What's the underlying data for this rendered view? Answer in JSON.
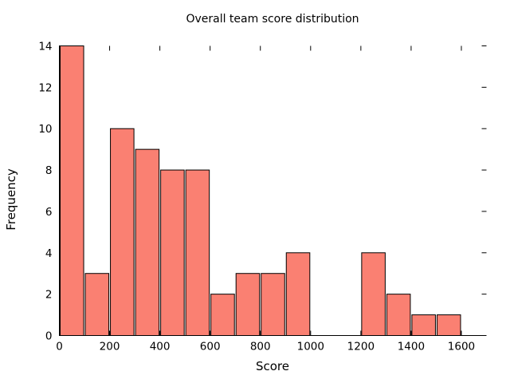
{
  "figure": {
    "background": "#ffffff"
  },
  "chart_data": {
    "type": "bar",
    "subtype": "histogram",
    "title": "Overall team score distribution",
    "xlabel": "Score",
    "ylabel": "Frequency",
    "bin_edges": [
      0,
      100,
      200,
      300,
      400,
      500,
      600,
      700,
      800,
      900,
      1000,
      1100,
      1200,
      1300,
      1400,
      1500,
      1600
    ],
    "values": [
      14,
      3,
      10,
      9,
      8,
      8,
      2,
      3,
      3,
      4,
      0,
      0,
      4,
      2,
      1,
      1
    ],
    "xlim": [
      0,
      1700
    ],
    "ylim": [
      0,
      14
    ],
    "xticks": [
      0,
      200,
      400,
      600,
      800,
      1000,
      1200,
      1400,
      1600
    ],
    "yticks": [
      0,
      2,
      4,
      6,
      8,
      10,
      12,
      14
    ],
    "bar_color": "#fa8072",
    "bar_edge_color": "#000000",
    "axis_color": "#000000",
    "grid": false,
    "legend_position": "none",
    "tick_style": "inward ticks, mirrored on hidden top and right spines"
  }
}
